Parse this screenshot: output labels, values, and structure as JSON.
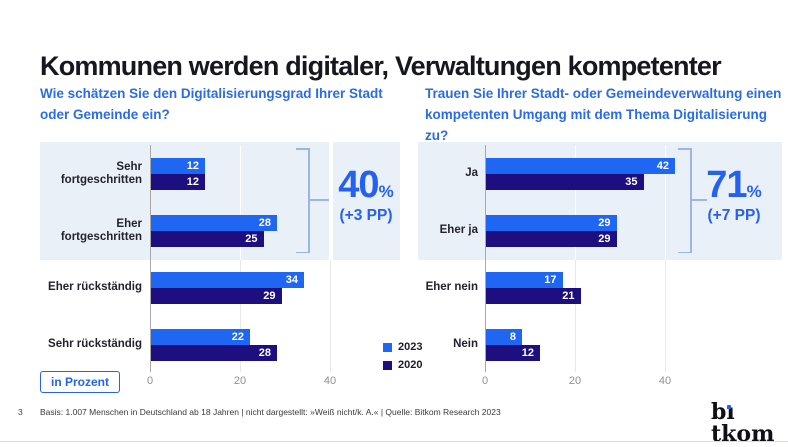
{
  "page": {
    "title": "Kommunen werden digitaler, Verwaltungen kompetenter",
    "unit_badge": "in Prozent",
    "footer": {
      "page_number": "3",
      "source": "Basis: 1.007 Menschen in Deutschland ab 18 Jahren | nicht dargestellt: »Weiß nicht/k. A.« | Quelle: Bitkom Research 2023"
    },
    "logo_text": "bitkom"
  },
  "colors": {
    "accent_blue": "#2563e8",
    "series_2023": "#1f66f2",
    "series_2020": "#1d0f80",
    "highlight_panel": "#eaf0f8",
    "question_text": "#2b6ce6",
    "big_number_text": "#2560ee"
  },
  "legend": {
    "items": [
      {
        "label": "2023",
        "color": "#1f66f2"
      },
      {
        "label": "2020",
        "color": "#1d0f80"
      }
    ]
  },
  "chart_data": [
    {
      "type": "bar",
      "orientation": "horizontal",
      "title": "Wie schätzen Sie den Digitalisierungsgrad Ihrer Stadt oder Gemeinde ein?",
      "unit": "Prozent",
      "categories": [
        "Sehr fortgeschritten",
        "Eher fortgeschritten",
        "Eher rückständig",
        "Sehr rückständig"
      ],
      "series": [
        {
          "name": "2023",
          "color": "#1f66f2",
          "values": [
            12,
            28,
            34,
            22
          ]
        },
        {
          "name": "2020",
          "color": "#1d0f80",
          "values": [
            12,
            25,
            29,
            28
          ]
        }
      ],
      "xticks": [
        0,
        20,
        40
      ],
      "xlim": [
        0,
        53
      ],
      "grid": true,
      "highlight": {
        "label": "40",
        "unit": "%",
        "change": "(+3 PP)",
        "covers": [
          "Sehr fortgeschritten",
          "Eher fortgeschritten"
        ]
      }
    },
    {
      "type": "bar",
      "orientation": "horizontal",
      "title": "Trauen Sie Ihrer Stadt- oder Gemeindeverwaltung einen kompetenten Umgang mit dem Thema Digitalisierung zu?",
      "unit": "Prozent",
      "categories": [
        "Ja",
        "Eher ja",
        "Eher nein",
        "Nein"
      ],
      "series": [
        {
          "name": "2023",
          "color": "#1f66f2",
          "values": [
            42,
            29,
            17,
            8
          ]
        },
        {
          "name": "2020",
          "color": "#1d0f80",
          "values": [
            35,
            29,
            21,
            12
          ]
        }
      ],
      "xticks": [
        0,
        20,
        40
      ],
      "xlim": [
        0,
        53
      ],
      "grid": true,
      "highlight": {
        "label": "71",
        "unit": "%",
        "change": "(+7 PP)",
        "covers": [
          "Ja",
          "Eher ja"
        ]
      }
    }
  ]
}
